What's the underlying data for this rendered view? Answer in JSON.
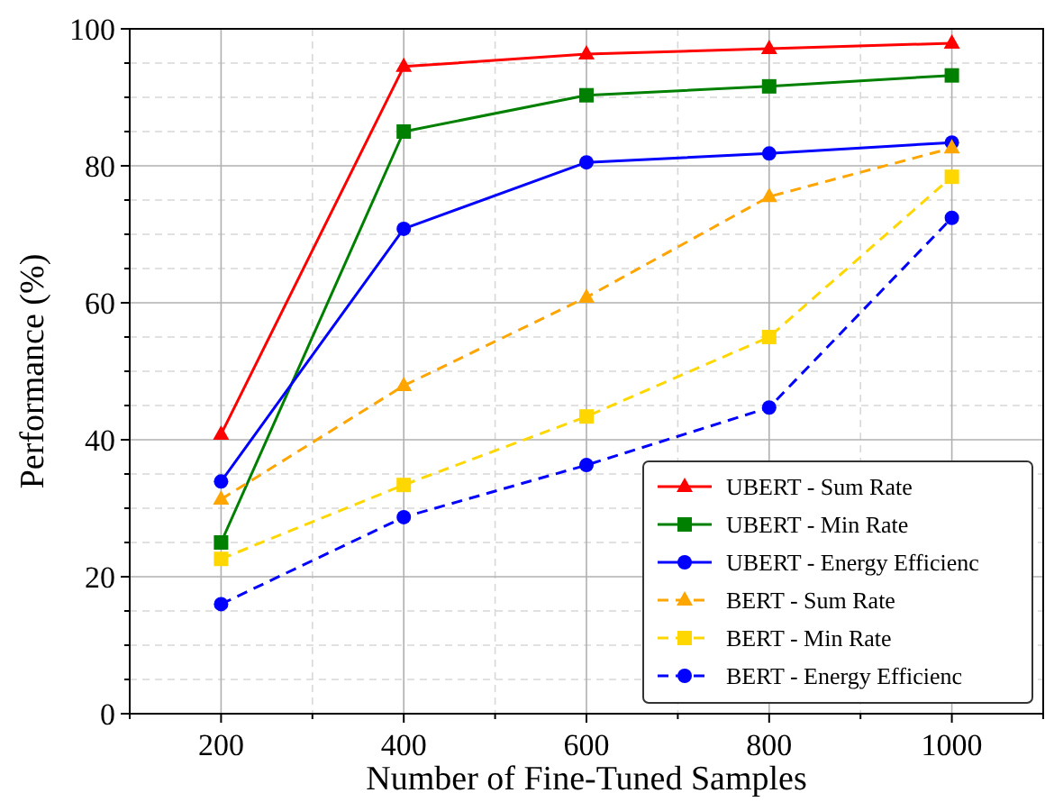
{
  "chart_data": {
    "type": "line",
    "xlabel": "Number of Fine-Tuned Samples",
    "ylabel": "Performance (%)",
    "x": [
      200,
      400,
      600,
      800,
      1000
    ],
    "xlim": [
      100,
      1100
    ],
    "xticks": [
      200,
      400,
      600,
      800,
      1000
    ],
    "ylim": [
      0,
      100
    ],
    "yticks": [
      0,
      20,
      40,
      60,
      80,
      100
    ],
    "grid": true,
    "legend": "bottom right",
    "series": [
      {
        "name": "UBERT - Sum Rate",
        "color": "#ff0000",
        "marker": "triangle",
        "line_style": "solid",
        "values": [
          40.8,
          94.5,
          96.3,
          97.1,
          97.9
        ]
      },
      {
        "name": "UBERT - Min Rate",
        "color": "#008000",
        "marker": "square",
        "line_style": "solid",
        "values": [
          25,
          85,
          90.3,
          91.6,
          93.2
        ]
      },
      {
        "name": "UBERT - Energy Efficienc",
        "color": "#0000ff",
        "marker": "circle",
        "line_style": "solid",
        "values": [
          33.9,
          70.8,
          80.5,
          81.8,
          83.4
        ]
      },
      {
        "name": "BERT - Sum Rate",
        "color": "#ffa500",
        "marker": "triangle",
        "line_style": "dashed",
        "values": [
          31.3,
          47.9,
          60.8,
          75.5,
          82.6
        ]
      },
      {
        "name": "BERT - Min Rate",
        "color": "#ffd700",
        "marker": "square",
        "line_style": "dashed",
        "values": [
          22.6,
          33.4,
          43.4,
          55,
          78.4
        ]
      },
      {
        "name": "BERT - Energy Efficienc",
        "color": "#0000ff",
        "marker": "circle",
        "line_style": "dashed",
        "values": [
          16,
          28.7,
          36.3,
          44.7,
          72.4
        ]
      }
    ]
  }
}
